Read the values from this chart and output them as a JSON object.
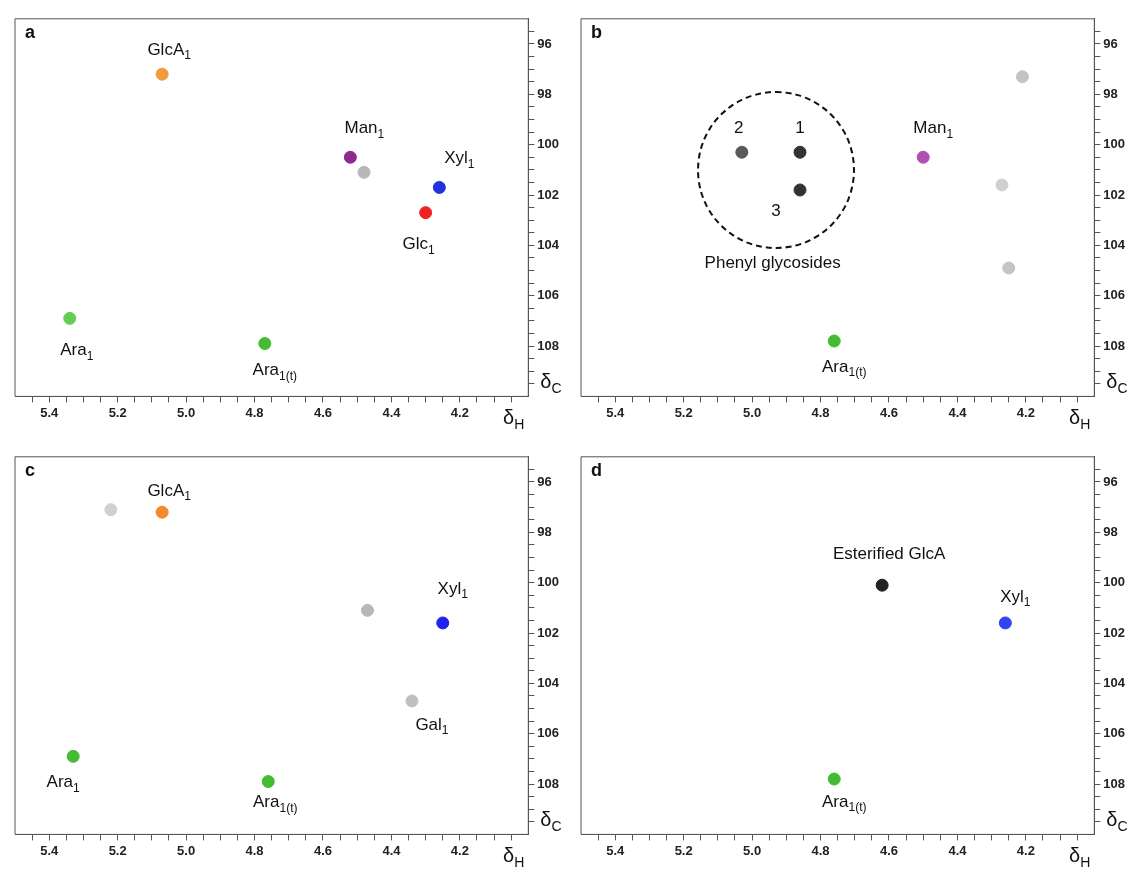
{
  "chart_data": [
    {
      "type": "scatter",
      "title": "a",
      "xlabel": "δ$_{H}$",
      "ylabel": "δ$_{C}$",
      "xlim": [
        5.5,
        4.0
      ],
      "ylim": [
        110,
        95
      ],
      "xticks": [
        {
          "value": 5.45,
          "label": null
        },
        5.4,
        {
          "value": 5.35,
          "label": null
        },
        {
          "value": 5.3,
          "label": null
        },
        {
          "value": 5.25,
          "label": null
        },
        5.2,
        {
          "value": 5.15,
          "label": null
        },
        {
          "value": 5.1,
          "label": null
        },
        {
          "value": 5.05,
          "label": null
        },
        {
          "value": 5.0,
          "label": "5.0"
        },
        {
          "value": 4.95,
          "label": null
        },
        {
          "value": 4.9,
          "label": null
        },
        {
          "value": 4.85,
          "label": null
        },
        4.8,
        {
          "value": 4.75,
          "label": null
        },
        {
          "value": 4.7,
          "label": null
        },
        {
          "value": 4.65,
          "label": null
        },
        4.6,
        {
          "value": 4.55,
          "label": null
        },
        {
          "value": 4.5,
          "label": null
        },
        {
          "value": 4.45,
          "label": null
        },
        4.4,
        {
          "value": 4.35,
          "label": null
        },
        {
          "value": 4.3,
          "label": null
        },
        {
          "value": 4.25,
          "label": null
        },
        4.2,
        {
          "value": 4.15,
          "label": null
        },
        {
          "value": 4.1,
          "label": null
        },
        {
          "value": 4.05,
          "label": null
        }
      ],
      "yticks": [
        {
          "value": 95.5,
          "label": null
        },
        96,
        {
          "value": 96.5,
          "label": null
        },
        {
          "value": 97,
          "label": null
        },
        {
          "value": 97.5,
          "label": null
        },
        98,
        {
          "value": 98.5,
          "label": null
        },
        {
          "value": 99,
          "label": null
        },
        {
          "value": 99.5,
          "label": null
        },
        100,
        {
          "value": 100.5,
          "label": null
        },
        {
          "value": 101,
          "label": null
        },
        {
          "value": 101.5,
          "label": null
        },
        102,
        {
          "value": 102.5,
          "label": null
        },
        {
          "value": 103,
          "label": null
        },
        {
          "value": 103.5,
          "label": null
        },
        104,
        {
          "value": 104.5,
          "label": null
        },
        {
          "value": 105,
          "label": null
        },
        {
          "value": 105.5,
          "label": null
        },
        106,
        {
          "value": 106.5,
          "label": null
        },
        {
          "value": 107,
          "label": null
        },
        {
          "value": 107.5,
          "label": null
        },
        108,
        {
          "value": 108.5,
          "label": null
        },
        {
          "value": 109,
          "label": null
        },
        {
          "value": 109.5,
          "label": null
        }
      ],
      "series": [
        {
          "x": [
            5.07,
            4.52,
            4.48,
            4.26,
            4.3,
            5.34,
            4.77
          ],
          "values": [
            97.2,
            100.5,
            101.1,
            101.7,
            102.7,
            106.9,
            107.9
          ],
          "colors": [
            "#f39a3c",
            "#8e2a8e",
            "#b8b8b8",
            "#2233dd",
            "#ee2222",
            "#66cc55",
            "#44bb33"
          ]
        }
      ],
      "annotations": [
        {
          "text": "GlcA$_{1}$",
          "x": 5.07,
          "y": 97.2
        },
        {
          "text": "Man$_{1}$",
          "x": 4.52,
          "y": 100.5
        },
        {
          "text": "Xyl$_{1}$",
          "x": 4.26,
          "y": 101.7
        },
        {
          "text": "Glc$_{1}$",
          "x": 4.3,
          "y": 102.7
        },
        {
          "text": "Ara$_{1}$",
          "x": 5.34,
          "y": 106.9
        },
        {
          "text": "Ara$_{1(t)}$",
          "x": 4.77,
          "y": 107.9
        }
      ]
    },
    {
      "type": "scatter",
      "title": "b",
      "xlabel": "δ$_{H}$",
      "ylabel": "δ$_{C}$",
      "xlim": [
        5.5,
        4.0
      ],
      "ylim": [
        110,
        95
      ],
      "xticks": [
        {
          "value": 5.45,
          "label": null
        },
        5.4,
        {
          "value": 5.35,
          "label": null
        },
        {
          "value": 5.3,
          "label": null
        },
        {
          "value": 5.25,
          "label": null
        },
        5.2,
        {
          "value": 5.15,
          "label": null
        },
        {
          "value": 5.1,
          "label": null
        },
        {
          "value": 5.05,
          "label": null
        },
        {
          "value": 5.0,
          "label": "5.0"
        },
        {
          "value": 4.95,
          "label": null
        },
        {
          "value": 4.9,
          "label": null
        },
        {
          "value": 4.85,
          "label": null
        },
        4.8,
        {
          "value": 4.75,
          "label": null
        },
        {
          "value": 4.7,
          "label": null
        },
        {
          "value": 4.65,
          "label": null
        },
        4.6,
        {
          "value": 4.55,
          "label": null
        },
        {
          "value": 4.5,
          "label": null
        },
        {
          "value": 4.45,
          "label": null
        },
        4.4,
        {
          "value": 4.35,
          "label": null
        },
        {
          "value": 4.3,
          "label": null
        },
        {
          "value": 4.25,
          "label": null
        },
        4.2,
        {
          "value": 4.15,
          "label": null
        },
        {
          "value": 4.1,
          "label": null
        },
        {
          "value": 4.05,
          "label": null
        }
      ],
      "yticks": [
        {
          "value": 95.5,
          "label": null
        },
        96,
        {
          "value": 96.5,
          "label": null
        },
        {
          "value": 97,
          "label": null
        },
        {
          "value": 97.5,
          "label": null
        },
        98,
        {
          "value": 98.5,
          "label": null
        },
        {
          "value": 99,
          "label": null
        },
        {
          "value": 99.5,
          "label": null
        },
        100,
        {
          "value": 100.5,
          "label": null
        },
        {
          "value": 101,
          "label": null
        },
        {
          "value": 101.5,
          "label": null
        },
        102,
        {
          "value": 102.5,
          "label": null
        },
        {
          "value": 103,
          "label": null
        },
        {
          "value": 103.5,
          "label": null
        },
        104,
        {
          "value": 104.5,
          "label": null
        },
        {
          "value": 105,
          "label": null
        },
        {
          "value": 105.5,
          "label": null
        },
        106,
        {
          "value": 106.5,
          "label": null
        },
        {
          "value": 107,
          "label": null
        },
        {
          "value": 107.5,
          "label": null
        },
        108,
        {
          "value": 108.5,
          "label": null
        },
        {
          "value": 109,
          "label": null
        },
        {
          "value": 109.5,
          "label": null
        }
      ],
      "series": [
        {
          "x": [
            4.86,
            5.03,
            4.86,
            4.5,
            4.21,
            4.27,
            4.25,
            4.76
          ],
          "values": [
            100.3,
            100.3,
            101.8,
            100.5,
            97.3,
            101.6,
            104.9,
            107.8
          ],
          "colors": [
            "#333333",
            "#5a5a5a",
            "#333333",
            "#b050b0",
            "#c4c4c4",
            "#d0d0d0",
            "#c4c4c4",
            "#44bb33"
          ]
        }
      ],
      "annotations": [
        {
          "text": "1",
          "x": 4.86,
          "y": 100.3
        },
        {
          "text": "2",
          "x": 5.03,
          "y": 100.3
        },
        {
          "text": "3",
          "x": 4.86,
          "y": 101.8
        },
        {
          "text": "Man$_{1}$",
          "x": 4.5,
          "y": 100.5
        },
        "Phenyl glycosides",
        {
          "text": "Ara$_{1(t)}$",
          "x": 4.76,
          "y": 107.8
        }
      ]
    },
    {
      "type": "scatter",
      "title": "c",
      "xlabel": "δ$_{H}$",
      "ylabel": "δ$_{C}$",
      "xlim": [
        5.5,
        4.0
      ],
      "ylim": [
        110,
        95
      ],
      "xticks": [
        {
          "value": 5.45,
          "label": null
        },
        5.4,
        {
          "value": 5.35,
          "label": null
        },
        {
          "value": 5.3,
          "label": null
        },
        {
          "value": 5.25,
          "label": null
        },
        5.2,
        {
          "value": 5.15,
          "label": null
        },
        {
          "value": 5.1,
          "label": null
        },
        {
          "value": 5.05,
          "label": null
        },
        {
          "value": 5.0,
          "label": "5.0"
        },
        {
          "value": 4.95,
          "label": null
        },
        {
          "value": 4.9,
          "label": null
        },
        {
          "value": 4.85,
          "label": null
        },
        4.8,
        {
          "value": 4.75,
          "label": null
        },
        {
          "value": 4.7,
          "label": null
        },
        {
          "value": 4.65,
          "label": null
        },
        4.6,
        {
          "value": 4.55,
          "label": null
        },
        {
          "value": 4.5,
          "label": null
        },
        {
          "value": 4.45,
          "label": null
        },
        4.4,
        {
          "value": 4.35,
          "label": null
        },
        {
          "value": 4.3,
          "label": null
        },
        {
          "value": 4.25,
          "label": null
        },
        4.2,
        {
          "value": 4.15,
          "label": null
        },
        {
          "value": 4.1,
          "label": null
        },
        {
          "value": 4.05,
          "label": null
        }
      ],
      "yticks": [
        {
          "value": 95.5,
          "label": null
        },
        96,
        {
          "value": 96.5,
          "label": null
        },
        {
          "value": 97,
          "label": null
        },
        {
          "value": 97.5,
          "label": null
        },
        98,
        {
          "value": 98.5,
          "label": null
        },
        {
          "value": 99,
          "label": null
        },
        {
          "value": 99.5,
          "label": null
        },
        100,
        {
          "value": 100.5,
          "label": null
        },
        {
          "value": 101,
          "label": null
        },
        {
          "value": 101.5,
          "label": null
        },
        102,
        {
          "value": 102.5,
          "label": null
        },
        {
          "value": 103,
          "label": null
        },
        {
          "value": 103.5,
          "label": null
        },
        104,
        {
          "value": 104.5,
          "label": null
        },
        {
          "value": 105,
          "label": null
        },
        {
          "value": 105.5,
          "label": null
        },
        106,
        {
          "value": 106.5,
          "label": null
        },
        {
          "value": 107,
          "label": null
        },
        {
          "value": 107.5,
          "label": null
        },
        108,
        {
          "value": 108.5,
          "label": null
        },
        {
          "value": 109,
          "label": null
        },
        {
          "value": 109.5,
          "label": null
        }
      ],
      "series": [
        {
          "x": [
            5.07,
            5.22,
            4.47,
            4.25,
            4.34,
            5.33,
            4.76
          ],
          "values": [
            97.2,
            97.1,
            101.1,
            101.6,
            104.7,
            106.9,
            107.9
          ],
          "colors": [
            "#f38a2c",
            "#d0d0d0",
            "#b8b8b8",
            "#2222ee",
            "#c0c0c0",
            "#44bb33",
            "#44bb33"
          ]
        }
      ],
      "annotations": [
        {
          "text": "GlcA$_{1}$",
          "x": 5.07,
          "y": 97.2
        },
        {
          "text": "Xyl$_{1}$",
          "x": 4.25,
          "y": 101.6
        },
        {
          "text": "Gal$_{1}$",
          "x": 4.34,
          "y": 104.7
        },
        {
          "text": "Ara$_{1}$",
          "x": 5.33,
          "y": 106.9
        },
        {
          "text": "Ara$_{1(t)}$",
          "x": 4.76,
          "y": 107.9
        }
      ]
    },
    {
      "type": "scatter",
      "title": "d",
      "xlabel": "δ$_{H}$",
      "ylabel": "δ$_{C}$",
      "xlim": [
        5.5,
        4.0
      ],
      "ylim": [
        110,
        95
      ],
      "xticks": [
        {
          "value": 5.45,
          "label": null
        },
        5.4,
        {
          "value": 5.35,
          "label": null
        },
        {
          "value": 5.3,
          "label": null
        },
        {
          "value": 5.25,
          "label": null
        },
        5.2,
        {
          "value": 5.15,
          "label": null
        },
        {
          "value": 5.1,
          "label": null
        },
        {
          "value": 5.05,
          "label": null
        },
        {
          "value": 5.0,
          "label": "5.0"
        },
        {
          "value": 4.95,
          "label": null
        },
        {
          "value": 4.9,
          "label": null
        },
        {
          "value": 4.85,
          "label": null
        },
        4.8,
        {
          "value": 4.75,
          "label": null
        },
        {
          "value": 4.7,
          "label": null
        },
        {
          "value": 4.65,
          "label": null
        },
        4.6,
        {
          "value": 4.55,
          "label": null
        },
        {
          "value": 4.5,
          "label": null
        },
        {
          "value": 4.45,
          "label": null
        },
        4.4,
        {
          "value": 4.35,
          "label": null
        },
        {
          "value": 4.3,
          "label": null
        },
        {
          "value": 4.25,
          "label": null
        },
        4.2,
        {
          "value": 4.15,
          "label": null
        },
        {
          "value": 4.1,
          "label": null
        },
        {
          "value": 4.05,
          "label": null
        }
      ],
      "yticks": [
        {
          "value": 95.5,
          "label": null
        },
        96,
        {
          "value": 96.5,
          "label": null
        },
        {
          "value": 97,
          "label": null
        },
        {
          "value": 97.5,
          "label": null
        },
        98,
        {
          "value": 98.5,
          "label": null
        },
        {
          "value": 99,
          "label": null
        },
        {
          "value": 99.5,
          "label": null
        },
        100,
        {
          "value": 100.5,
          "label": null
        },
        {
          "value": 101,
          "label": null
        },
        {
          "value": 101.5,
          "label": null
        },
        102,
        {
          "value": 102.5,
          "label": null
        },
        {
          "value": 103,
          "label": null
        },
        {
          "value": 103.5,
          "label": null
        },
        104,
        {
          "value": 104.5,
          "label": null
        },
        {
          "value": 105,
          "label": null
        },
        {
          "value": 105.5,
          "label": null
        },
        106,
        {
          "value": 106.5,
          "label": null
        },
        {
          "value": 107,
          "label": null
        },
        {
          "value": 107.5,
          "label": null
        },
        108,
        {
          "value": 108.5,
          "label": null
        },
        {
          "value": 109,
          "label": null
        },
        {
          "value": 109.5,
          "label": null
        }
      ],
      "series": [
        {
          "x": [
            4.62,
            4.26,
            4.76
          ],
          "values": [
            100.1,
            101.6,
            107.8
          ],
          "colors": [
            "#222222",
            "#3344ee",
            "#44bb33"
          ]
        }
      ],
      "annotations": [
        {
          "text": "Esterified GlcA",
          "x": 4.62,
          "y": 100.1
        },
        {
          "text": "Xyl$_{1}$",
          "x": 4.26,
          "y": 101.6
        },
        {
          "text": "Ara$_{1(t)}$",
          "x": 4.76,
          "y": 107.8
        }
      ]
    }
  ]
}
